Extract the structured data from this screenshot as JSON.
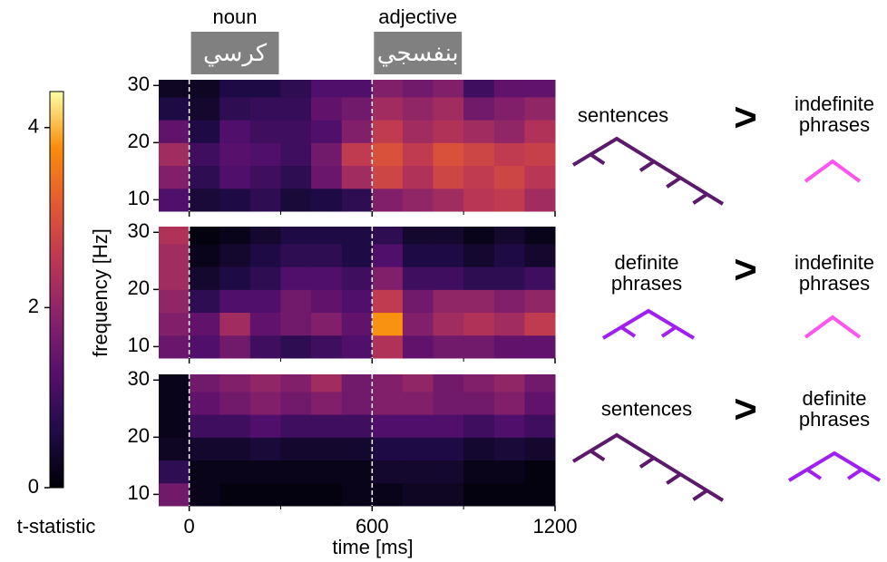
{
  "chart_data": {
    "type": "heatmap",
    "xlabel": "time [ms]",
    "ylabel": "frequency [Hz]",
    "xlim": [
      -100,
      1200
    ],
    "xticks": [
      0,
      600,
      1200
    ],
    "xminorticks": [
      300,
      900
    ],
    "ylim": [
      8,
      31
    ],
    "yticks": [
      10,
      20,
      30
    ],
    "x_bins": [
      -100,
      0,
      100,
      200,
      300,
      400,
      500,
      600,
      700,
      800,
      900,
      1000,
      1100,
      1200
    ],
    "y_bins": [
      8,
      12,
      16,
      20,
      24,
      28,
      31
    ],
    "events": [
      {
        "label": "noun",
        "word": "كرسي",
        "start": 0,
        "end": 300
      },
      {
        "label": "adjective",
        "word": "بنفسجي",
        "start": 600,
        "end": 900
      }
    ],
    "event_box_color": "#808080",
    "event_line_color": "#ffffff",
    "colorbar": {
      "label": "t-statistic",
      "clim": [
        0,
        4.4
      ],
      "ticks": [
        0,
        2,
        4
      ],
      "colormap": [
        "#000004",
        "#1f0c48",
        "#550f6d",
        "#88226a",
        "#ba3655",
        "#e35933",
        "#f98c0a",
        "#fcffa4"
      ]
    },
    "panels": [
      {
        "left": "sentences",
        "operator": ">",
        "right": "indefinite phrases",
        "left_color": "#5b1a6b",
        "right_color": "#ff55ee",
        "values": [
          [
            1.2,
            0.5,
            0.6,
            0.8,
            0.5,
            0.6,
            0.8,
            1.8,
            2.0,
            2.2,
            2.5,
            2.6,
            2.2
          ],
          [
            1.8,
            0.8,
            1.2,
            1.0,
            0.8,
            1.5,
            2.2,
            2.8,
            2.4,
            2.8,
            2.6,
            2.8,
            2.5
          ],
          [
            2.2,
            1.0,
            1.3,
            1.2,
            1.0,
            1.6,
            2.6,
            3.0,
            2.6,
            3.0,
            2.8,
            2.6,
            2.7
          ],
          [
            1.4,
            0.6,
            1.2,
            1.0,
            1.0,
            1.2,
            1.8,
            2.6,
            2.2,
            2.4,
            2.2,
            2.0,
            2.4
          ],
          [
            0.6,
            0.4,
            0.8,
            0.9,
            0.9,
            1.4,
            1.6,
            2.2,
            2.0,
            2.2,
            1.6,
            1.8,
            2.0
          ],
          [
            0.3,
            0.3,
            0.6,
            0.6,
            0.8,
            1.2,
            1.2,
            1.8,
            1.6,
            1.8,
            1.0,
            1.4,
            1.4
          ]
        ]
      },
      {
        "left": "definite phrases",
        "operator": ">",
        "right": "indefinite phrases",
        "left_color": "#a020f0",
        "right_color": "#ff55ee",
        "values": [
          [
            1.5,
            1.2,
            1.6,
            1.0,
            0.8,
            1.0,
            1.2,
            2.4,
            1.4,
            1.6,
            1.6,
            1.4,
            1.4
          ],
          [
            1.8,
            1.4,
            2.2,
            1.4,
            1.6,
            1.8,
            1.4,
            3.8,
            1.8,
            2.2,
            2.4,
            2.2,
            2.6
          ],
          [
            2.0,
            0.8,
            1.2,
            1.2,
            1.6,
            1.4,
            1.2,
            2.6,
            1.6,
            2.0,
            2.0,
            1.8,
            2.0
          ],
          [
            2.2,
            0.4,
            0.6,
            0.8,
            1.2,
            1.2,
            1.0,
            1.8,
            1.0,
            1.0,
            0.8,
            0.8,
            1.0
          ],
          [
            2.2,
            0.2,
            0.4,
            0.6,
            0.8,
            0.8,
            0.6,
            1.2,
            0.6,
            0.6,
            0.4,
            0.6,
            0.4
          ],
          [
            2.4,
            0.1,
            0.2,
            0.4,
            0.6,
            0.6,
            0.6,
            0.8,
            0.4,
            0.4,
            0.2,
            0.4,
            0.2
          ]
        ]
      },
      {
        "left": "sentences",
        "operator": ">",
        "right": "definite phrases",
        "left_color": "#5b1a6b",
        "right_color": "#a020f0",
        "values": [
          [
            1.6,
            0.2,
            0.1,
            0.1,
            0.1,
            0.1,
            0.2,
            0.2,
            0.3,
            0.3,
            0.1,
            0.1,
            0.1
          ],
          [
            0.8,
            0.2,
            0.2,
            0.2,
            0.2,
            0.2,
            0.2,
            0.4,
            0.4,
            0.4,
            0.2,
            0.2,
            0.1
          ],
          [
            0.3,
            0.4,
            0.4,
            0.5,
            0.4,
            0.4,
            0.4,
            0.6,
            0.6,
            0.6,
            0.4,
            0.5,
            0.4
          ],
          [
            0.2,
            1.0,
            1.0,
            1.2,
            1.0,
            1.0,
            1.0,
            1.2,
            1.2,
            1.2,
            1.0,
            1.2,
            1.0
          ],
          [
            0.2,
            1.4,
            1.6,
            1.8,
            1.6,
            1.8,
            1.6,
            1.8,
            1.8,
            1.6,
            1.6,
            1.8,
            1.4
          ],
          [
            0.2,
            1.6,
            1.8,
            2.0,
            1.8,
            2.2,
            1.6,
            1.8,
            2.0,
            1.6,
            1.8,
            2.0,
            1.6
          ]
        ]
      }
    ]
  }
}
